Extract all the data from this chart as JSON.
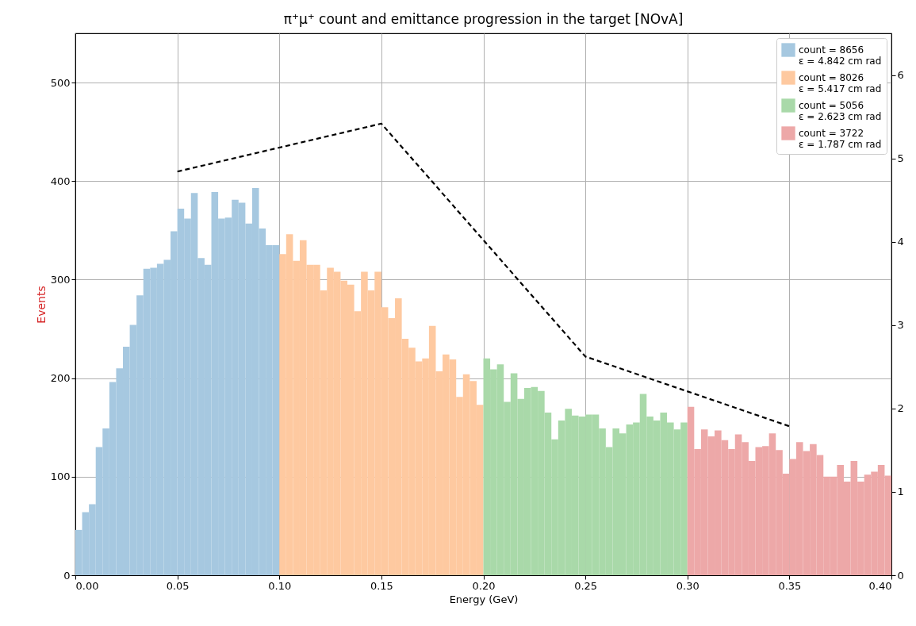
{
  "chart_data": {
    "type": "histogram",
    "title": "π⁺μ⁺ count and emittance progression in the target [NOvA]",
    "xlabel": "Energy (GeV)",
    "ylabel": "Events",
    "xlim": [
      0,
      0.4
    ],
    "xticks": [
      {
        "value": 0,
        "label": "0.00"
      },
      {
        "value": 0.05,
        "label": "0.05"
      },
      {
        "value": 0.1,
        "label": "0.10"
      },
      {
        "value": 0.15,
        "label": "0.15"
      },
      {
        "value": 0.2,
        "label": "0.20"
      },
      {
        "value": 0.25,
        "label": "0.25"
      },
      {
        "value": 0.3,
        "label": "0.30"
      },
      {
        "value": 0.35,
        "label": "0.35"
      },
      {
        "value": 0.4,
        "label": "0.40"
      }
    ],
    "ylim": [
      0,
      550
    ],
    "yticks": [
      0,
      100,
      200,
      300,
      400,
      500
    ],
    "y2lim": [
      0,
      6.5
    ],
    "y2ticks": [
      0,
      1,
      2,
      3,
      4,
      5,
      6
    ],
    "grid": true,
    "legend": "top right",
    "series": [
      {
        "name": "count = 8656\nε = 4.842 cm rad",
        "color": "#a6c8e0",
        "bins": [
          0,
          0.00333,
          0.00667,
          0.01,
          0.01333,
          0.01667,
          0.02,
          0.02333,
          0.02667,
          0.03,
          0.03333,
          0.03667,
          0.04,
          0.04333,
          0.04667,
          0.05,
          0.05333,
          0.05667,
          0.06,
          0.06333,
          0.06667,
          0.07,
          0.07333,
          0.07667,
          0.08,
          0.08333,
          0.08667,
          0.09,
          0.09333,
          0.09667,
          0.1
        ],
        "values": [
          46,
          64,
          72,
          130,
          149,
          196,
          210,
          232,
          254,
          284,
          311,
          312,
          316,
          320,
          349,
          372,
          362,
          388,
          322,
          315,
          389,
          362,
          363,
          381,
          378,
          357,
          393,
          352,
          335,
          335
        ]
      },
      {
        "name": "count = 8026\nε = 5.417 cm rad",
        "color": "#fec9a0",
        "bins": [
          0.1,
          0.10333,
          0.10667,
          0.11,
          0.11333,
          0.11667,
          0.12,
          0.12333,
          0.12667,
          0.13,
          0.13333,
          0.13667,
          0.14,
          0.14333,
          0.14667,
          0.15,
          0.15333,
          0.15667,
          0.16,
          0.16333,
          0.16667,
          0.17,
          0.17333,
          0.17667,
          0.18,
          0.18333,
          0.18667,
          0.19,
          0.19333,
          0.19667,
          0.2
        ],
        "values": [
          326,
          346,
          319,
          340,
          315,
          315,
          289,
          312,
          308,
          299,
          295,
          268,
          308,
          289,
          308,
          272,
          261,
          281,
          240,
          231,
          217,
          220,
          253,
          207,
          224,
          219,
          181,
          204,
          197,
          173
        ]
      },
      {
        "name": "count = 5056\nε = 2.623 cm rad",
        "color": "#a9d9a9",
        "bins": [
          0.2,
          0.20333,
          0.20667,
          0.21,
          0.21333,
          0.21667,
          0.22,
          0.22333,
          0.22667,
          0.23,
          0.23333,
          0.23667,
          0.24,
          0.24333,
          0.24667,
          0.25,
          0.25333,
          0.25667,
          0.26,
          0.26333,
          0.26667,
          0.27,
          0.27333,
          0.27667,
          0.28,
          0.28333,
          0.28667,
          0.29,
          0.29333,
          0.29667,
          0.3
        ],
        "values": [
          220,
          209,
          214,
          176,
          205,
          179,
          190,
          191,
          187,
          165,
          138,
          157,
          169,
          162,
          161,
          163,
          163,
          149,
          130,
          149,
          144,
          153,
          155,
          184,
          161,
          157,
          165,
          155,
          148,
          155
        ]
      },
      {
        "name": "count = 3722\nε = 1.787 cm rad",
        "color": "#eda8a8",
        "bins": [
          0.3,
          0.30333,
          0.30667,
          0.31,
          0.31333,
          0.31667,
          0.32,
          0.32333,
          0.32667,
          0.33,
          0.33333,
          0.33667,
          0.34,
          0.34333,
          0.34667,
          0.35,
          0.35333,
          0.35667,
          0.36,
          0.36333,
          0.36667,
          0.37,
          0.37333,
          0.37667,
          0.38,
          0.38333,
          0.38667,
          0.39,
          0.39333,
          0.39667,
          0.4
        ],
        "values": [
          171,
          128,
          148,
          141,
          147,
          137,
          128,
          143,
          135,
          116,
          130,
          131,
          144,
          127,
          103,
          118,
          135,
          126,
          133,
          122,
          100,
          100,
          112,
          95,
          116,
          95,
          102,
          105,
          112,
          101
        ]
      },
      {
        "type": "line",
        "axis": "y2",
        "color": "#000000",
        "line_style": "dashed",
        "marker": "none",
        "x": [
          0.05,
          0.15,
          0.25,
          0.35
        ],
        "values": [
          4.842,
          5.417,
          2.623,
          1.787
        ]
      }
    ]
  }
}
